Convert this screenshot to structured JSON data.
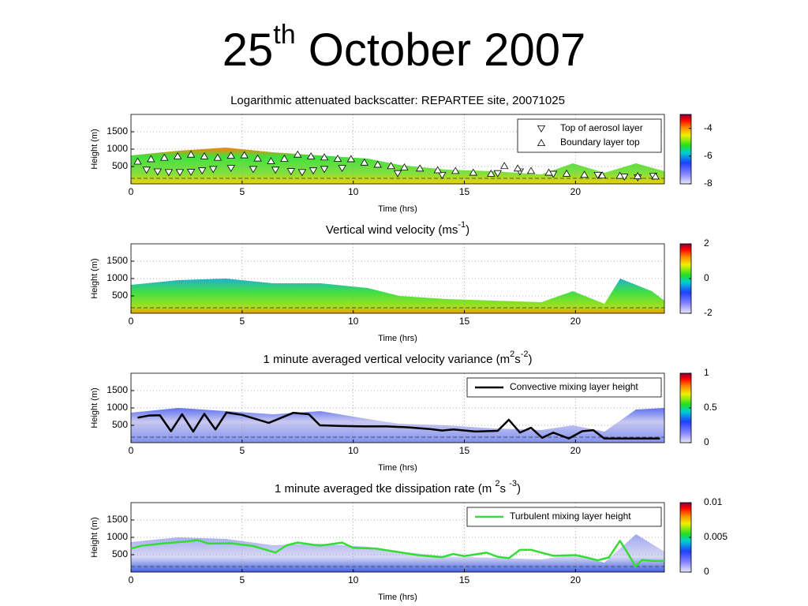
{
  "slide_title": {
    "base": "25",
    "sup": "th",
    "rest": " October 2007"
  },
  "chart_data": [
    {
      "type": "scatter",
      "title_parts": [
        {
          "text": "Logarithmic attenuated backscatter: REPARTEE site, 20071025"
        }
      ],
      "x_label": "Time (hrs)",
      "y_label": "Height (m)",
      "xlim": [
        0,
        24
      ],
      "xticks": [
        0,
        5,
        10,
        15,
        20
      ],
      "ylim": [
        0,
        2000
      ],
      "yticks": [
        500,
        1000,
        1500
      ],
      "grid": true,
      "colorbar": {
        "lim": [
          -8,
          -3
        ],
        "ticks": [
          -4,
          -6,
          -8
        ]
      },
      "legend": "upper right",
      "series": [
        {
          "name": "Top of aerosol layer",
          "marker": "down-triangle",
          "color": "#000000",
          "x": [
            0.7,
            1.2,
            1.7,
            2.2,
            2.7,
            3.2,
            3.7,
            4.5,
            5.5,
            6.5,
            7.2,
            7.7,
            8.2,
            8.7,
            9.5,
            12,
            14,
            16.5,
            17.5,
            19,
            21,
            22.2,
            22.8,
            23.5
          ],
          "values": [
            400,
            350,
            330,
            330,
            340,
            380,
            420,
            450,
            420,
            400,
            360,
            330,
            380,
            420,
            450,
            300,
            250,
            300,
            350,
            280,
            250,
            200,
            180,
            220
          ]
        },
        {
          "name": "Boundary layer top",
          "marker": "up-triangle",
          "color": "#000000",
          "x": [
            0.3,
            0.9,
            1.5,
            2.1,
            2.7,
            3.3,
            3.9,
            4.5,
            5.1,
            5.7,
            6.3,
            6.9,
            7.5,
            8.1,
            8.7,
            9.3,
            9.9,
            10.5,
            11.1,
            11.7,
            12.3,
            13,
            13.8,
            14.6,
            15.4,
            16.2,
            16.8,
            17.4,
            18,
            18.8,
            19.6,
            20.4,
            21.2,
            22,
            22.8,
            23.6
          ],
          "values": [
            650,
            720,
            760,
            800,
            850,
            800,
            760,
            820,
            830,
            740,
            660,
            730,
            850,
            800,
            770,
            730,
            720,
            620,
            560,
            520,
            480,
            450,
            400,
            380,
            330,
            300,
            520,
            450,
            380,
            330,
            300,
            270,
            250,
            240,
            230,
            220
          ]
        }
      ]
    },
    {
      "type": "heatmap",
      "title_parts": [
        {
          "text": "Vertical wind velocity (ms"
        },
        {
          "sup": "-1"
        },
        {
          "text": ")"
        }
      ],
      "x_label": "Time (hrs)",
      "y_label": "Height (m)",
      "xlim": [
        0,
        24
      ],
      "xticks": [
        0,
        5,
        10,
        15,
        20
      ],
      "ylim": [
        0,
        2000
      ],
      "yticks": [
        500,
        1000,
        1500
      ],
      "grid": true,
      "colorbar": {
        "lim": [
          -2,
          2
        ],
        "ticks": [
          2,
          0,
          -2
        ]
      }
    },
    {
      "type": "line",
      "title_parts": [
        {
          "text": "1 minute averaged vertical velocity variance (m"
        },
        {
          "sup": "2"
        },
        {
          "text": "s"
        },
        {
          "sup": "-2"
        },
        {
          "text": ")"
        }
      ],
      "x_label": "Time (hrs)",
      "y_label": "Height (m)",
      "xlim": [
        0,
        24
      ],
      "xticks": [
        0,
        5,
        10,
        15,
        20
      ],
      "ylim": [
        0,
        2000
      ],
      "yticks": [
        500,
        1000,
        1500
      ],
      "grid": true,
      "colorbar": {
        "lim": [
          0,
          1
        ],
        "ticks": [
          1,
          0.5,
          0
        ]
      },
      "legend": "upper right",
      "series": [
        {
          "name": "Convective mixing layer height",
          "color": "#000000",
          "x": [
            0.3,
            0.8,
            1.3,
            1.8,
            2.3,
            2.8,
            3.3,
            3.8,
            4.3,
            5,
            6.2,
            7.3,
            8,
            8.5,
            9.5,
            10.5,
            11.5,
            12.5,
            13.5,
            14,
            14.5,
            15.5,
            16.5,
            17,
            17.5,
            18,
            18.5,
            19,
            19.7,
            20.3,
            20.8,
            21.3,
            22,
            23,
            23.8
          ],
          "values": [
            720,
            780,
            790,
            330,
            820,
            320,
            830,
            380,
            870,
            800,
            570,
            860,
            820,
            500,
            480,
            470,
            470,
            440,
            390,
            350,
            380,
            320,
            340,
            660,
            290,
            430,
            140,
            290,
            120,
            330,
            360,
            120,
            120,
            120,
            120
          ]
        }
      ]
    },
    {
      "type": "line",
      "title_parts": [
        {
          "text": "1 minute averaged tke dissipation rate (m "
        },
        {
          "sup": "2"
        },
        {
          "text": "s "
        },
        {
          "sup": "-3"
        },
        {
          "text": ")"
        }
      ],
      "x_label": "Time (hrs)",
      "y_label": "Height (m)",
      "xlim": [
        0,
        24
      ],
      "xticks": [
        0,
        5,
        10,
        15,
        20
      ],
      "ylim": [
        0,
        2000
      ],
      "yticks": [
        500,
        1000,
        1500
      ],
      "grid": true,
      "colorbar": {
        "lim": [
          0,
          0.01
        ],
        "ticks": [
          0.01,
          0.005,
          0
        ]
      },
      "legend": "upper right",
      "series": [
        {
          "name": "Turbulent mixing layer height",
          "color": "#33dd33",
          "x": [
            0,
            0.5,
            1.5,
            2.5,
            3,
            3.5,
            4.5,
            5.5,
            6.5,
            7,
            7.5,
            8.5,
            9.5,
            10,
            11,
            12,
            13,
            14,
            14.5,
            15,
            16,
            16.5,
            17,
            17.5,
            18,
            19,
            20,
            20.5,
            21,
            21.5,
            22,
            22.3,
            22.7,
            23,
            23.5,
            24
          ],
          "values": [
            680,
            760,
            830,
            880,
            920,
            820,
            830,
            750,
            560,
            770,
            850,
            760,
            850,
            700,
            680,
            580,
            480,
            430,
            520,
            460,
            560,
            440,
            400,
            640,
            640,
            470,
            490,
            420,
            340,
            420,
            900,
            600,
            160,
            350,
            320,
            320
          ]
        }
      ]
    }
  ]
}
